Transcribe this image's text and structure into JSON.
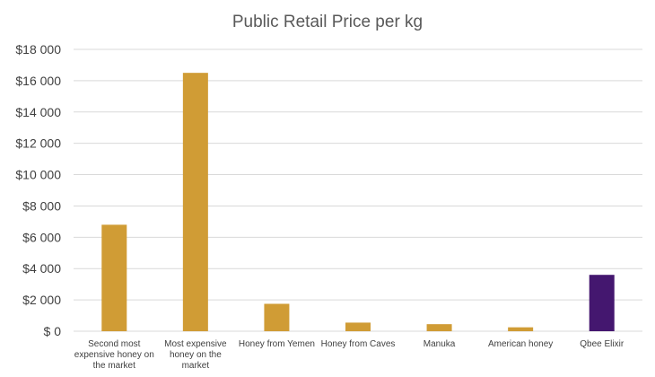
{
  "chart_data": {
    "type": "bar",
    "title": "Public Retail Price per kg",
    "xlabel": "",
    "ylabel": "",
    "categories": [
      "Second most expensive honey on the market",
      "Most expensive honey on the market",
      "Honey from Yemen",
      "Honey from Caves",
      "Manuka",
      "American honey",
      "Qbee Elixir"
    ],
    "category_lines": [
      [
        "Second most",
        "expensive honey on",
        "the market"
      ],
      [
        "Most expensive",
        "honey on the",
        "market"
      ],
      [
        "Honey from Yemen"
      ],
      [
        "Honey from Caves"
      ],
      [
        "Manuka"
      ],
      [
        "American honey"
      ],
      [
        "Qbee Elixir"
      ]
    ],
    "values": [
      6800,
      16500,
      1750,
      550,
      450,
      250,
      3600
    ],
    "ylim": [
      0,
      18000
    ],
    "yticks": [
      0,
      2000,
      4000,
      6000,
      8000,
      10000,
      12000,
      14000,
      16000,
      18000
    ],
    "ytick_labels": [
      "$ 0",
      "$2 000",
      "$4 000",
      "$6 000",
      "$8 000",
      "$10 000",
      "$12 000",
      "$14 000",
      "$16 000",
      "$18 000"
    ],
    "grid": true,
    "legend": "none",
    "colors": {
      "default_bar": "#d09c35",
      "highlight_bar": "#44176f",
      "highlight_index": 6
    }
  }
}
